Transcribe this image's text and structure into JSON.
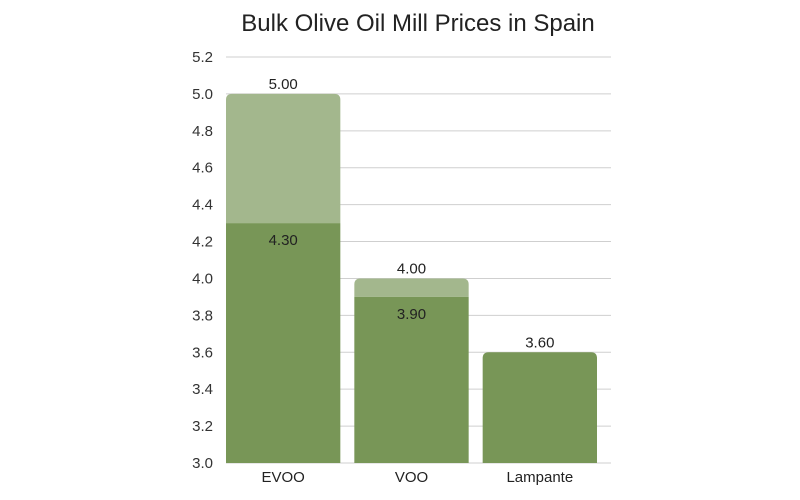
{
  "chart_data": {
    "type": "bar",
    "title": "Bulk Olive Oil Mill Prices in Spain",
    "xlabel": "",
    "ylabel": "",
    "categories": [
      "EVOO",
      "VOO",
      "Lampante"
    ],
    "ylim": [
      3.0,
      5.2
    ],
    "yticks": [
      3.0,
      3.2,
      3.4,
      3.6,
      3.8,
      4.0,
      4.2,
      4.4,
      4.6,
      4.8,
      5.0,
      5.2
    ],
    "grid": true,
    "stacked_ranges": true,
    "series": [
      {
        "values": [
          4.3,
          3.9,
          3.6
        ],
        "labels": [
          "4.30",
          "3.90",
          "3.60"
        ],
        "color": "#789657"
      },
      {
        "values": [
          5.0,
          4.0,
          null
        ],
        "labels": [
          "5.00",
          "4.00",
          ""
        ],
        "color": "#a3b78d"
      }
    ]
  }
}
